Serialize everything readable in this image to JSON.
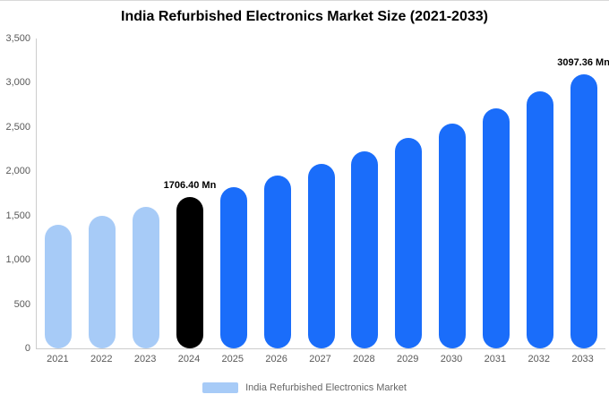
{
  "title": "India Refurbished Electronics Market Size (2021-2033)",
  "legend": {
    "label": "India Refurbished Electronics Market",
    "swatch_color": "#a7cbf7"
  },
  "colors": {
    "historical": "#a7cbf7",
    "base_year": "#000000",
    "forecast": "#1a6dfa",
    "axis_line": "#cccccc",
    "tick_text": "#595959"
  },
  "chart_data": {
    "type": "bar",
    "title": "India Refurbished Electronics Market Size (2021-2033)",
    "unit": "Mn",
    "categories": [
      "2021",
      "2022",
      "2023",
      "2024",
      "2025",
      "2026",
      "2027",
      "2028",
      "2029",
      "2030",
      "2031",
      "2032",
      "2033"
    ],
    "values": [
      1398.9,
      1494.7,
      1597.1,
      1706.4,
      1823.2,
      1948.1,
      2081.5,
      2224.0,
      2376.3,
      2539.0,
      2712.9,
      2898.6,
      3097.36
    ],
    "bar_roles": [
      "historical",
      "historical",
      "historical",
      "base_year",
      "forecast",
      "forecast",
      "forecast",
      "forecast",
      "forecast",
      "forecast",
      "forecast",
      "forecast",
      "forecast"
    ],
    "annotations": [
      {
        "index": 3,
        "text": "1706.40 Mn"
      },
      {
        "index": 12,
        "text": "3097.36 Mn"
      }
    ],
    "ylim": [
      0,
      3500
    ],
    "yticks": [
      0,
      500,
      1000,
      1500,
      2000,
      2500,
      3000,
      3500
    ],
    "ytick_labels": [
      "0",
      "500",
      "1,000",
      "1,500",
      "2,000",
      "2,500",
      "3,000",
      "3,500"
    ],
    "grid": false,
    "legend_position": "bottom"
  }
}
